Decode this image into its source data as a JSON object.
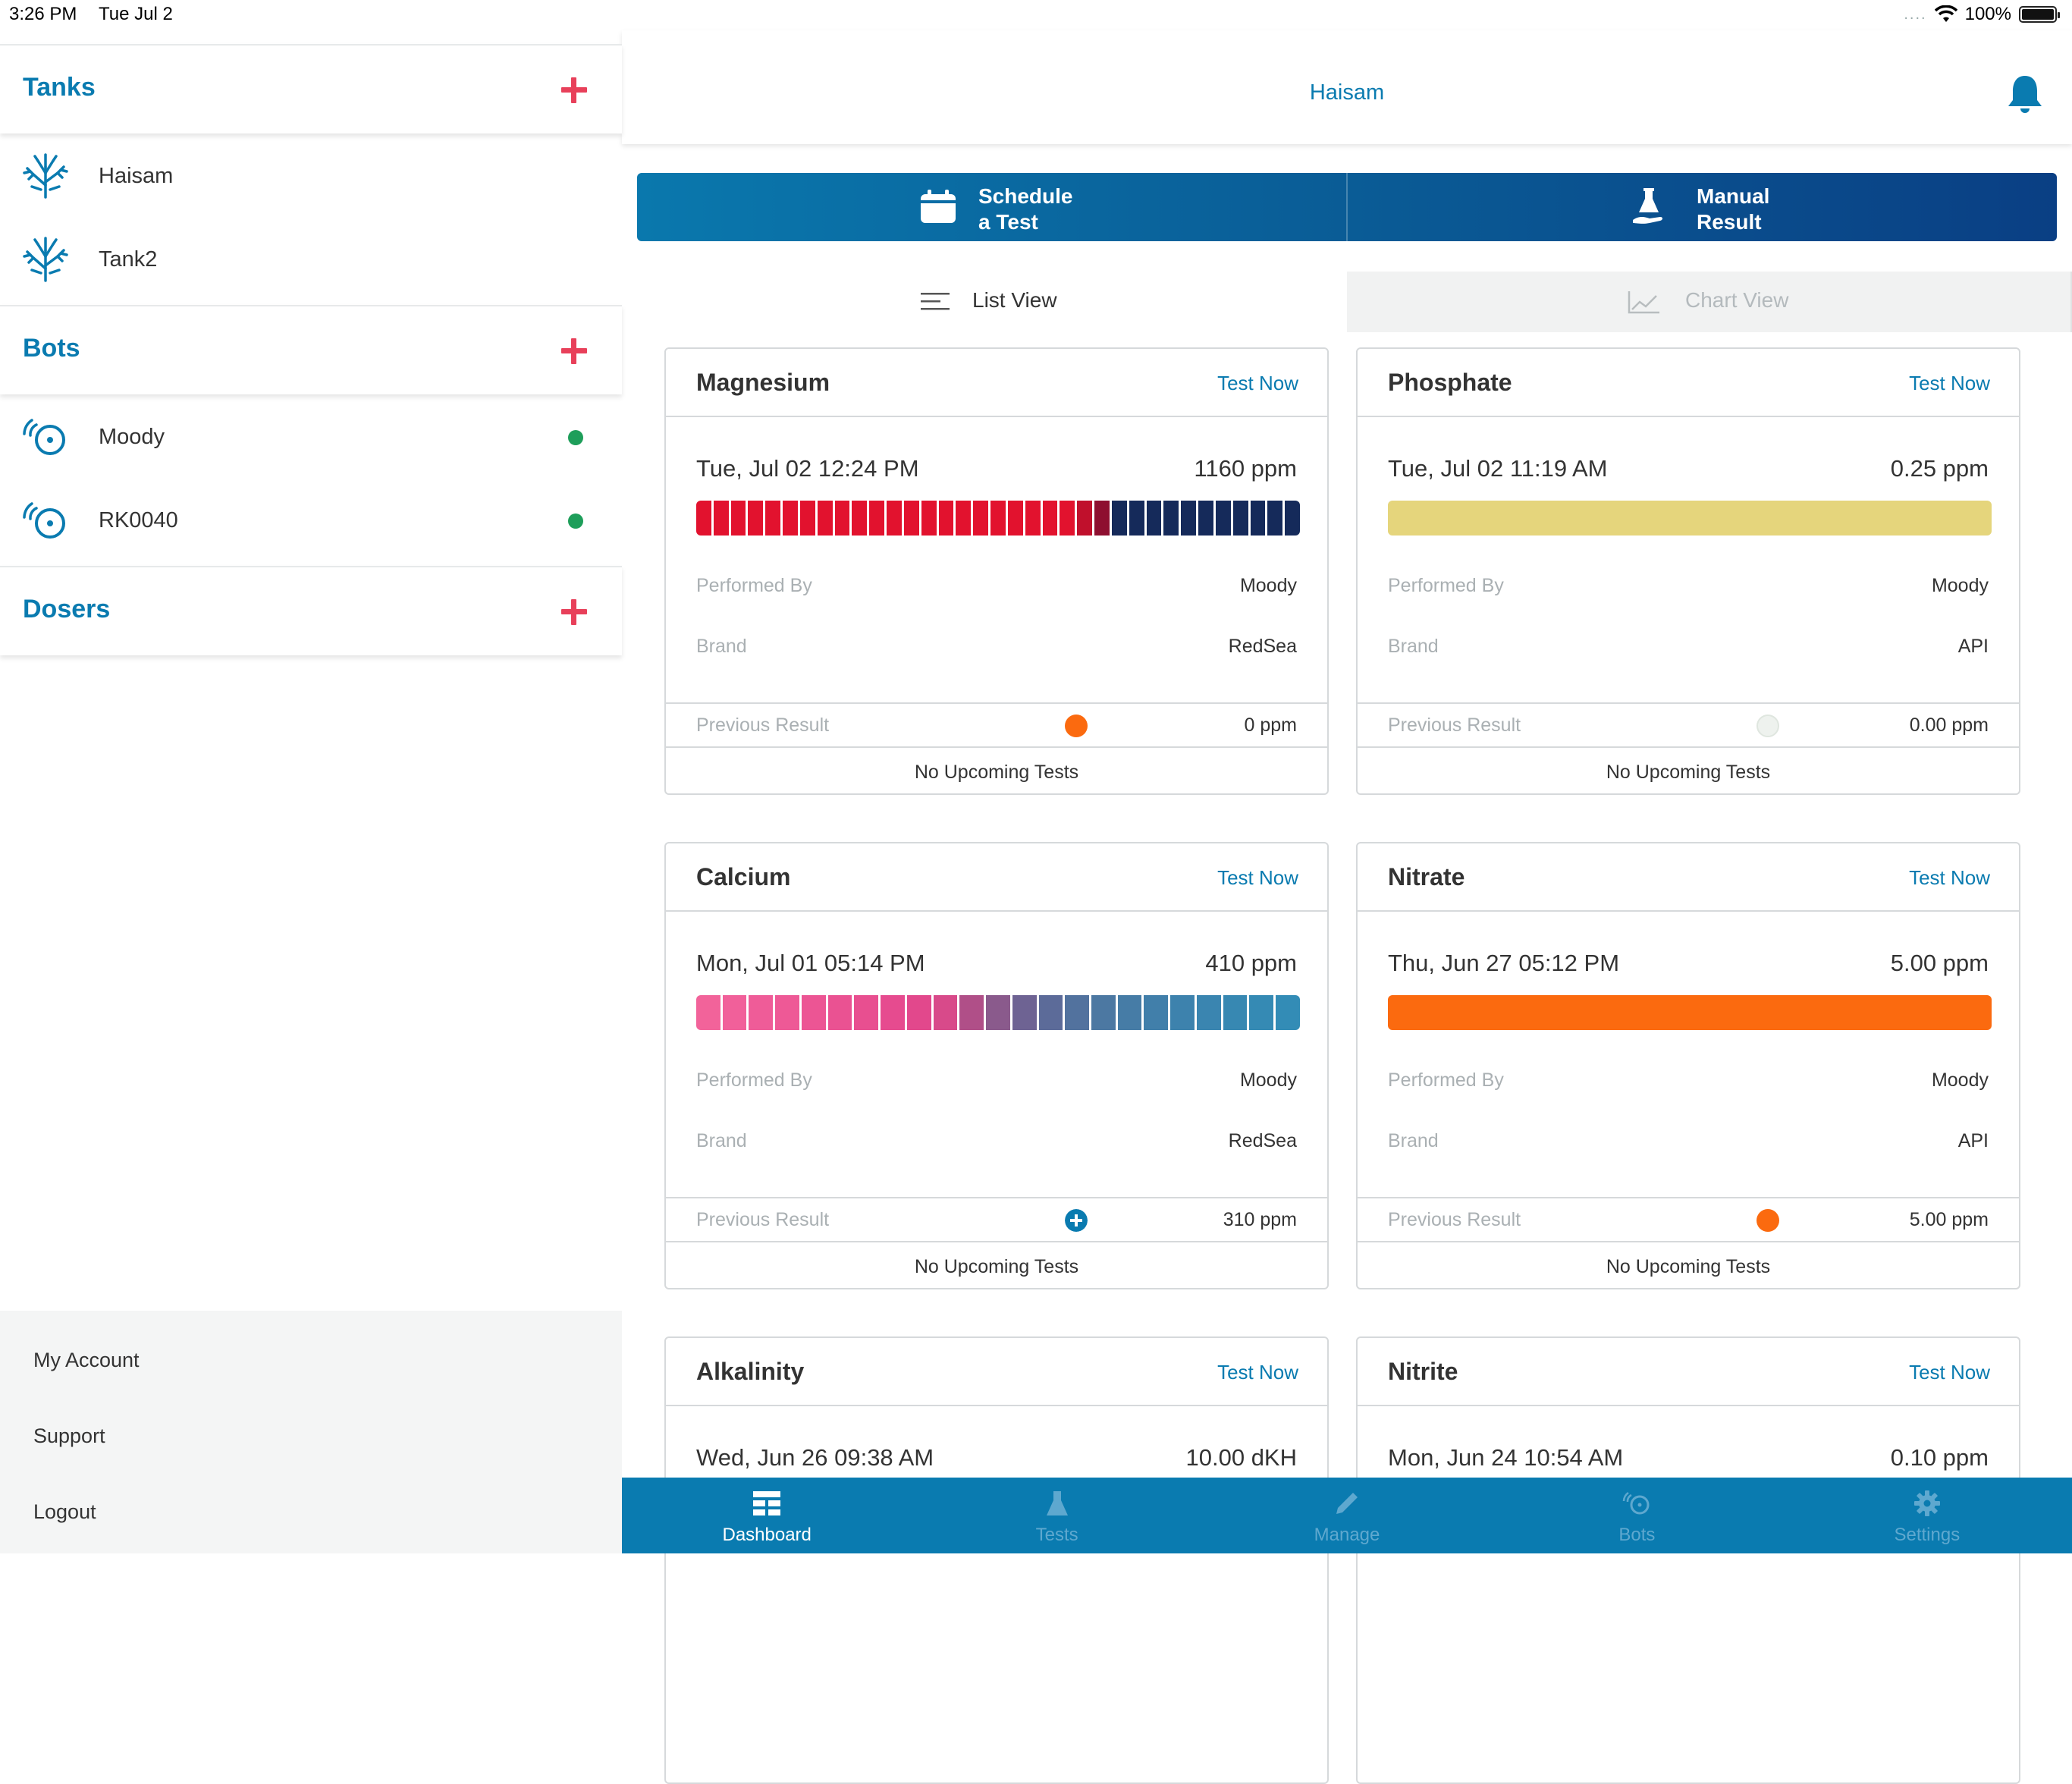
{
  "status_bar": {
    "time": "3:26 PM",
    "date": "Tue Jul 2",
    "dots": "....",
    "battery": "100%"
  },
  "sidebar": {
    "sections": [
      {
        "title": "Tanks",
        "items": [
          {
            "label": "Haisam"
          },
          {
            "label": "Tank2"
          }
        ]
      },
      {
        "title": "Bots",
        "items": [
          {
            "label": "Moody",
            "online": true
          },
          {
            "label": "RK0040",
            "online": true
          }
        ]
      },
      {
        "title": "Dosers",
        "items": []
      }
    ],
    "footer_links": {
      "account": "My Account",
      "support": "Support",
      "logout": "Logout"
    }
  },
  "header": {
    "tank_name": "Haisam"
  },
  "actions": {
    "schedule": {
      "line1": "Schedule",
      "line2": "a Test"
    },
    "manual": {
      "line1": "Manual",
      "line2": "Result"
    }
  },
  "view_tabs": {
    "list": "List View",
    "chart": "Chart View",
    "selected": "list"
  },
  "labels": {
    "test_now": "Test Now",
    "performed_by": "Performed By",
    "brand": "Brand",
    "previous_result": "Previous Result",
    "no_upcoming": "No Upcoming Tests"
  },
  "cards": [
    {
      "title": "Magnesium",
      "date": "Tue, Jul 02 12:24 PM",
      "value": "1160 ppm",
      "performed_by": "Moody",
      "brand": "RedSea",
      "previous_value": "0 ppm",
      "previous_indicator": "#fb6a0f",
      "bar": "magnesium"
    },
    {
      "title": "Phosphate",
      "date": "Tue, Jul 02 11:19 AM",
      "value": "0.25 ppm",
      "performed_by": "Moody",
      "brand": "API",
      "previous_value": "0.00 ppm",
      "previous_indicator": "#eef2ee",
      "bar_color": "#e5d57c"
    },
    {
      "title": "Calcium",
      "date": "Mon, Jul 01 05:14 PM",
      "value": "410 ppm",
      "performed_by": "Moody",
      "brand": "RedSea",
      "previous_value": "310 ppm",
      "previous_indicator": "plus-icon",
      "bar": "calcium"
    },
    {
      "title": "Nitrate",
      "date": "Thu, Jun 27 05:12 PM",
      "value": "5.00 ppm",
      "performed_by": "Moody",
      "brand": "API",
      "previous_value": "5.00 ppm",
      "previous_indicator": "#fb6a0f",
      "bar_color": "#fb6a0f"
    },
    {
      "title": "Alkalinity",
      "date": "Wed, Jun 26 09:38 AM",
      "value": "10.00 dKH"
    },
    {
      "title": "Nitrite",
      "date": "Mon, Jun 24 10:54 AM",
      "value": "0.10 ppm"
    }
  ],
  "tab_bar": [
    {
      "label": "Dashboard",
      "icon": "dashboard-icon",
      "active": true
    },
    {
      "label": "Tests",
      "icon": "flask-icon",
      "active": false
    },
    {
      "label": "Manage",
      "icon": "pencil-icon",
      "active": false
    },
    {
      "label": "Bots",
      "icon": "bot-icon",
      "active": false
    },
    {
      "label": "Settings",
      "icon": "gear-icon",
      "active": false
    }
  ],
  "colors": {
    "accent": "#0a7bb0",
    "plus": "#e8405a",
    "online": "#1e9e5a",
    "orange": "#fb6a0f",
    "phosphate": "#e5d57c"
  }
}
